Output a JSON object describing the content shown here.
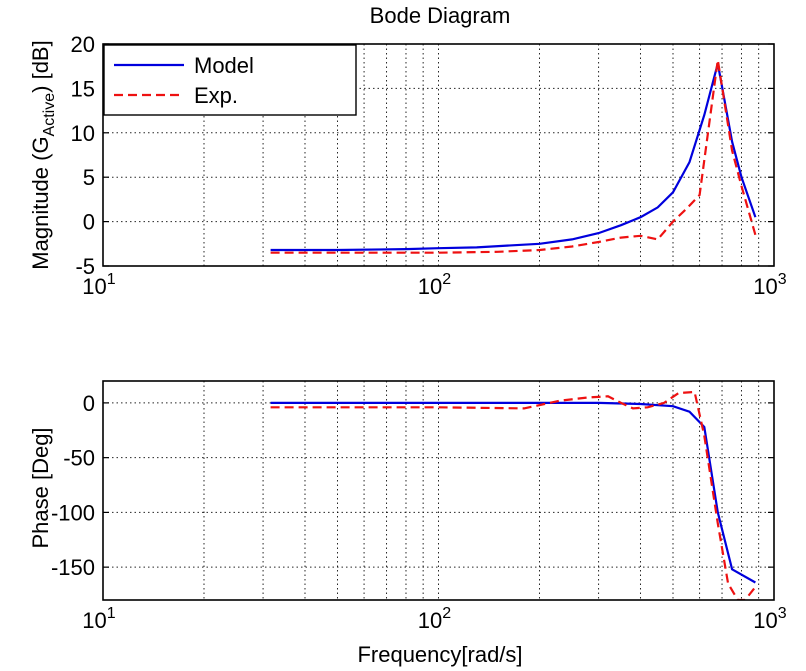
{
  "chart_data": [
    {
      "type": "line",
      "title": "Bode Diagram",
      "xlabel": "",
      "ylabel": "Magnitude  (G",
      "ylabel_sub": "Active",
      "ylabel_end": ") [dB]",
      "xscale": "log",
      "xlim": [
        10,
        1000
      ],
      "ylim": [
        -5,
        20
      ],
      "xticks": [
        10,
        100,
        1000
      ],
      "xtick_labels": [
        {
          "base": "10",
          "exp": "1"
        },
        {
          "base": "10",
          "exp": "2"
        },
        {
          "base": "10",
          "exp": "3"
        }
      ],
      "yticks": [
        -5,
        0,
        5,
        10,
        15,
        20
      ],
      "ytick_labels": [
        "-5",
        "0",
        "5",
        "10",
        "15",
        "20"
      ],
      "grid": true,
      "legend_position": "top-left",
      "series": [
        {
          "name": "Model",
          "color": "#0000dd",
          "style": "solid",
          "x": [
            31.6,
            50,
            80,
            100,
            130,
            160,
            200,
            250,
            300,
            350,
            400,
            450,
            500,
            560,
            620,
            680,
            750,
            800,
            880
          ],
          "y": [
            -3.2,
            -3.2,
            -3.1,
            -3.0,
            -2.9,
            -2.7,
            -2.5,
            -2.0,
            -1.3,
            -0.4,
            0.5,
            1.6,
            3.3,
            6.7,
            12.0,
            17.8,
            9.0,
            5.0,
            0.5
          ]
        },
        {
          "name": "Exp.",
          "color": "#ee1111",
          "style": "dashed",
          "x": [
            31.6,
            60,
            100,
            150,
            200,
            250,
            300,
            350,
            400,
            450,
            500,
            550,
            600,
            680,
            750,
            800,
            880
          ],
          "y": [
            -3.5,
            -3.5,
            -3.5,
            -3.4,
            -3.2,
            -2.8,
            -2.3,
            -1.8,
            -1.6,
            -2.0,
            0.0,
            1.5,
            3.0,
            18.2,
            8.0,
            4.0,
            -1.5
          ]
        }
      ]
    },
    {
      "type": "line",
      "title": "",
      "xlabel": "Frequency[rad/s]",
      "ylabel": "Phase [Deg]",
      "xscale": "log",
      "xlim": [
        10,
        1000
      ],
      "ylim": [
        -180,
        20
      ],
      "xticks": [
        10,
        100,
        1000
      ],
      "xtick_labels": [
        {
          "base": "10",
          "exp": "1"
        },
        {
          "base": "10",
          "exp": "2"
        },
        {
          "base": "10",
          "exp": "3"
        }
      ],
      "yticks": [
        -150,
        -100,
        -50,
        0
      ],
      "ytick_labels": [
        "-150",
        "-100",
        "-50",
        "0"
      ],
      "grid": true,
      "series": [
        {
          "name": "Model",
          "color": "#0000dd",
          "style": "solid",
          "x": [
            31.6,
            100,
            200,
            300,
            400,
            500,
            560,
            620,
            680,
            750,
            880
          ],
          "y": [
            0,
            0,
            0,
            0,
            -1,
            -3,
            -8,
            -22,
            -100,
            -152,
            -164
          ]
        },
        {
          "name": "Exp.",
          "color": "#ee1111",
          "style": "dashed",
          "x": [
            31.6,
            100,
            180,
            230,
            280,
            320,
            350,
            380,
            420,
            470,
            520,
            580,
            620,
            680,
            730,
            780,
            820,
            880
          ],
          "y": [
            -4,
            -4,
            -5,
            2,
            5,
            6,
            0,
            -5,
            -4,
            0,
            9,
            10,
            -30,
            -110,
            -165,
            -180,
            -180,
            -168
          ]
        }
      ]
    }
  ]
}
